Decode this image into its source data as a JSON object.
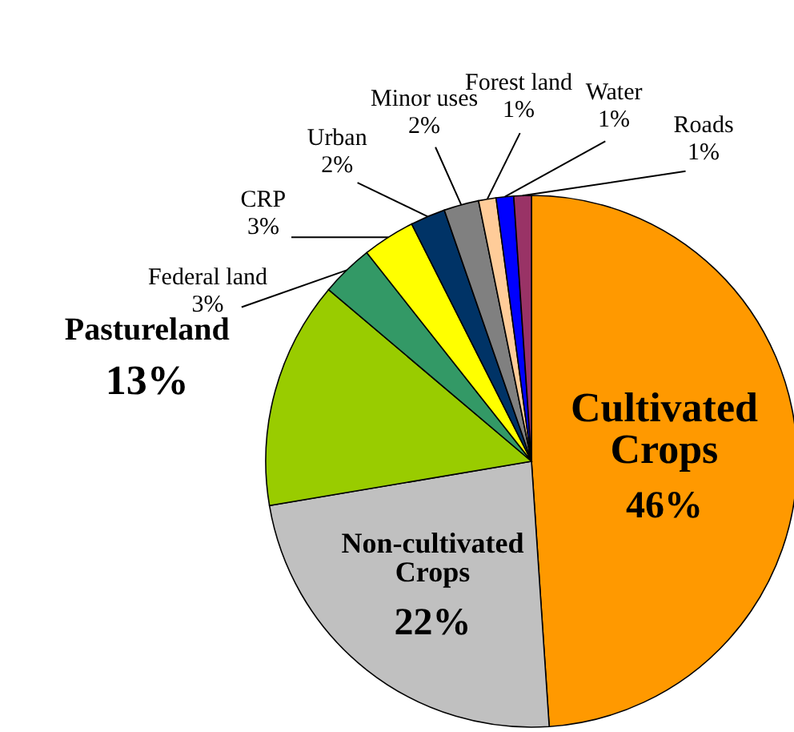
{
  "chart_data": {
    "type": "pie",
    "categories": [
      "Cultivated Crops",
      "Non-cultivated Crops",
      "Pastureland",
      "Federal land",
      "CRP",
      "Urban",
      "Minor uses",
      "Forest land",
      "Water",
      "Roads"
    ],
    "values": [
      46,
      22,
      13,
      3,
      3,
      2,
      2,
      1,
      1,
      1
    ],
    "value_labels": [
      "46%",
      "22%",
      "13%",
      "3%",
      "3%",
      "2%",
      "2%",
      "1%",
      "1%",
      "1%"
    ],
    "colors": [
      "#ff9900",
      "#c0c0c0",
      "#99cc00",
      "#339966",
      "#ffff00",
      "#003366",
      "#808080",
      "#ffcc99",
      "#0000ff",
      "#993366"
    ]
  }
}
